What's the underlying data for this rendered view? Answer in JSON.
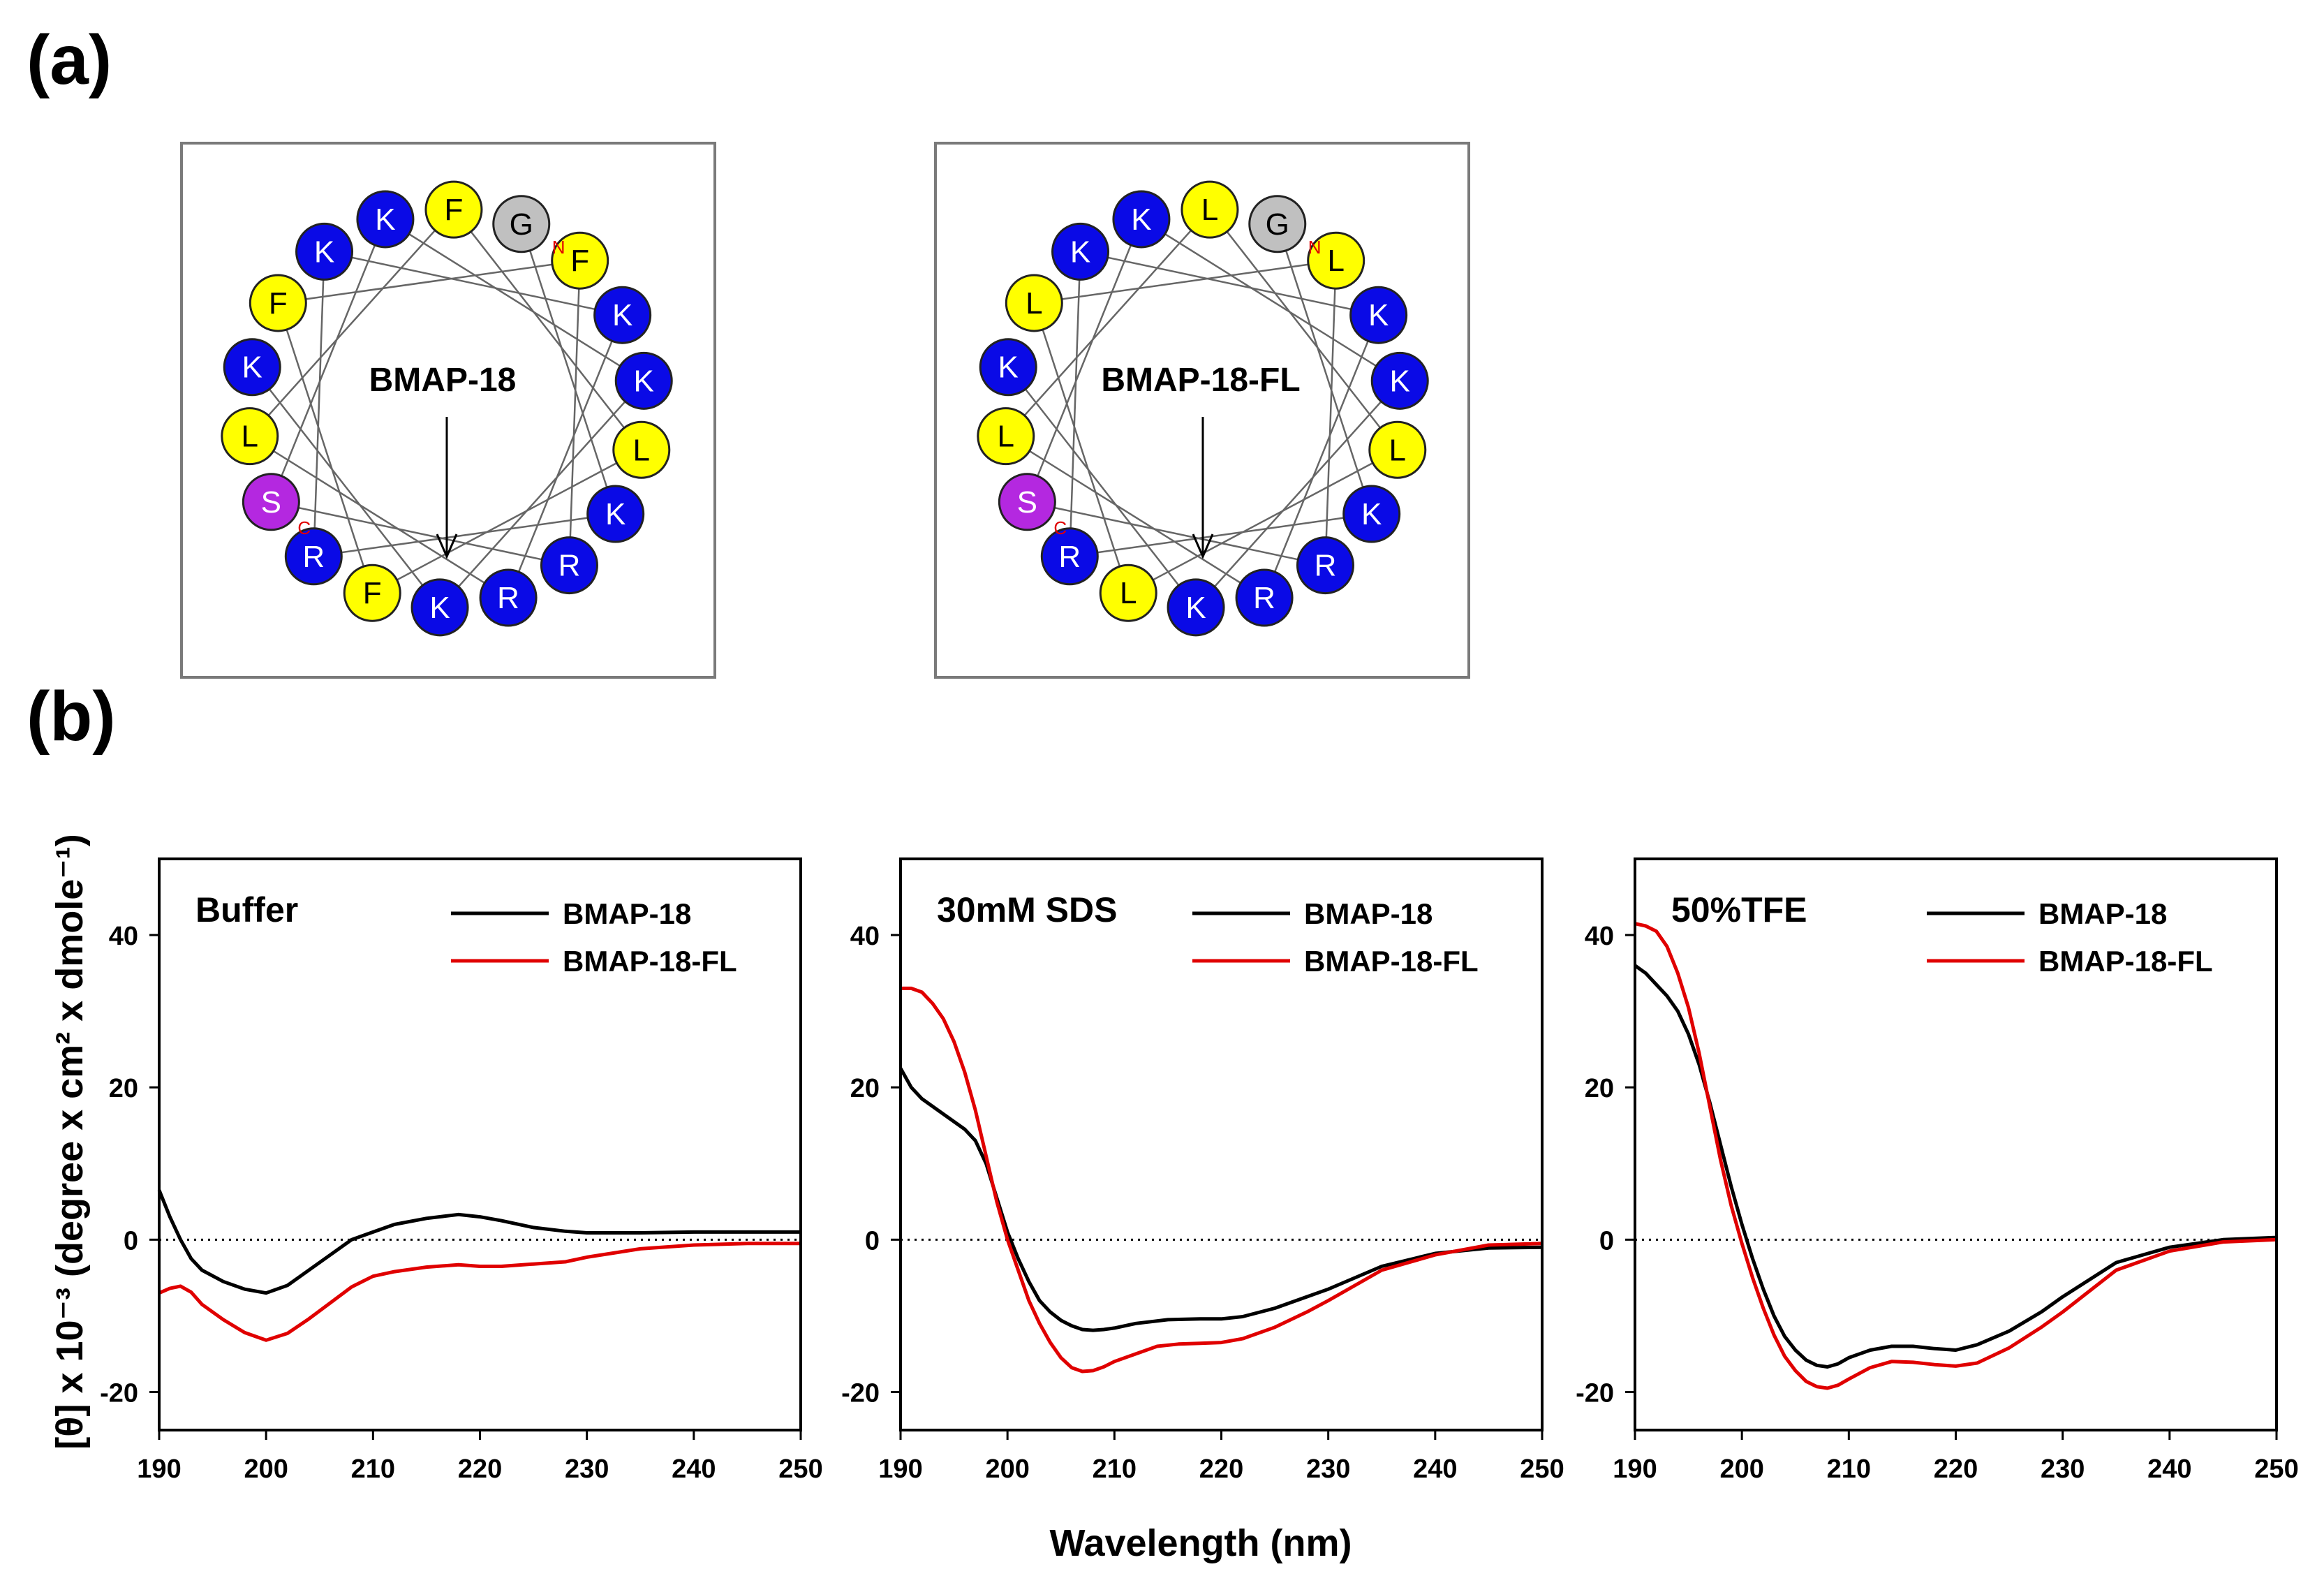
{
  "panels": {
    "a": "(a)",
    "b": "(b)"
  },
  "helical_wheels": [
    {
      "title": "BMAP-18",
      "n_marker": "N",
      "c_marker": "C",
      "residues": [
        {
          "letter": "G",
          "color": "#c0c0c0"
        },
        {
          "letter": "K",
          "color": "#0a0ae6"
        },
        {
          "letter": "R",
          "color": "#0a0ae6"
        },
        {
          "letter": "K",
          "color": "#0a0ae6"
        },
        {
          "letter": "K",
          "color": "#0a0ae6"
        },
        {
          "letter": "R",
          "color": "#0a0ae6"
        },
        {
          "letter": "L",
          "color": "#ffff00"
        },
        {
          "letter": "F",
          "color": "#ffff00"
        },
        {
          "letter": "L",
          "color": "#ffff00"
        },
        {
          "letter": "F",
          "color": "#ffff00"
        },
        {
          "letter": "F",
          "color": "#ffff00"
        },
        {
          "letter": "F",
          "color": "#ffff00"
        },
        {
          "letter": "R",
          "color": "#0a0ae6"
        },
        {
          "letter": "S",
          "color": "#b428e0"
        },
        {
          "letter": "K",
          "color": "#0a0ae6"
        },
        {
          "letter": "K",
          "color": "#0a0ae6"
        },
        {
          "letter": "K",
          "color": "#0a0ae6"
        },
        {
          "letter": "K",
          "color": "#0a0ae6"
        }
      ]
    },
    {
      "title": "BMAP-18-FL",
      "n_marker": "N",
      "c_marker": "C",
      "residues": [
        {
          "letter": "G",
          "color": "#c0c0c0"
        },
        {
          "letter": "K",
          "color": "#0a0ae6"
        },
        {
          "letter": "R",
          "color": "#0a0ae6"
        },
        {
          "letter": "K",
          "color": "#0a0ae6"
        },
        {
          "letter": "K",
          "color": "#0a0ae6"
        },
        {
          "letter": "R",
          "color": "#0a0ae6"
        },
        {
          "letter": "L",
          "color": "#ffff00"
        },
        {
          "letter": "L",
          "color": "#ffff00"
        },
        {
          "letter": "L",
          "color": "#ffff00"
        },
        {
          "letter": "L",
          "color": "#ffff00"
        },
        {
          "letter": "L",
          "color": "#ffff00"
        },
        {
          "letter": "L",
          "color": "#ffff00"
        },
        {
          "letter": "R",
          "color": "#0a0ae6"
        },
        {
          "letter": "S",
          "color": "#b428e0"
        },
        {
          "letter": "K",
          "color": "#0a0ae6"
        },
        {
          "letter": "K",
          "color": "#0a0ae6"
        },
        {
          "letter": "K",
          "color": "#0a0ae6"
        },
        {
          "letter": "K",
          "color": "#0a0ae6"
        }
      ]
    }
  ],
  "y_axis_label": "[θ] x 10⁻³ (degree x cm² x dmole⁻¹)",
  "x_axis_label": "Wavelength (nm)",
  "chart_data": [
    {
      "type": "line",
      "title": "Buffer",
      "xlabel": "Wavelength (nm)",
      "ylabel": "[θ] x 10⁻³ (degree x cm² x dmole⁻¹)",
      "xlim": [
        190,
        250
      ],
      "ylim": [
        -25,
        50
      ],
      "xticks": [
        190,
        200,
        210,
        220,
        230,
        240,
        250
      ],
      "yticks": [
        -20,
        0,
        20,
        40
      ],
      "zero_line": "dotted",
      "legend_position": "top-right",
      "series": [
        {
          "name": "BMAP-18",
          "color": "#000000",
          "x": [
            190,
            191,
            192,
            193,
            194,
            196,
            198,
            200,
            202,
            204,
            206,
            208,
            210,
            212,
            215,
            218,
            220,
            222,
            225,
            228,
            230,
            235,
            240,
            245,
            250
          ],
          "y": [
            6.5,
            3,
            0,
            -2.5,
            -4,
            -5.5,
            -6.5,
            -7,
            -6,
            -4,
            -2,
            0,
            1,
            2,
            2.8,
            3.3,
            3,
            2.5,
            1.6,
            1.1,
            0.9,
            0.9,
            1,
            1,
            1
          ]
        },
        {
          "name": "BMAP-18-FL",
          "color": "#e00000",
          "x": [
            190,
            191,
            192,
            193,
            194,
            196,
            198,
            200,
            202,
            204,
            206,
            208,
            210,
            212,
            215,
            218,
            220,
            222,
            225,
            228,
            230,
            235,
            240,
            245,
            250
          ],
          "y": [
            -7,
            -6.4,
            -6.1,
            -6.9,
            -8.5,
            -10.5,
            -12.2,
            -13.2,
            -12.3,
            -10.4,
            -8.3,
            -6.2,
            -4.8,
            -4.2,
            -3.6,
            -3.3,
            -3.5,
            -3.5,
            -3.2,
            -2.9,
            -2.3,
            -1.2,
            -0.7,
            -0.5,
            -0.5
          ]
        }
      ]
    },
    {
      "type": "line",
      "title": "30mM SDS",
      "xlabel": "Wavelength (nm)",
      "ylabel": "[θ] x 10⁻³ (degree x cm² x dmole⁻¹)",
      "xlim": [
        190,
        250
      ],
      "ylim": [
        -25,
        50
      ],
      "xticks": [
        190,
        200,
        210,
        220,
        230,
        240,
        250
      ],
      "yticks": [
        -20,
        0,
        20,
        40
      ],
      "zero_line": "dotted",
      "legend_position": "top-right",
      "series": [
        {
          "name": "BMAP-18",
          "color": "#000000",
          "x": [
            190,
            191,
            192,
            194,
            196,
            197,
            198,
            199,
            200,
            201,
            202,
            203,
            204,
            205,
            206,
            207,
            208,
            209,
            210,
            212,
            215,
            218,
            220,
            222,
            225,
            228,
            230,
            235,
            240,
            245,
            250
          ],
          "y": [
            22.5,
            20,
            18.5,
            16.5,
            14.5,
            13,
            10,
            5.5,
            1,
            -2.5,
            -5.5,
            -8,
            -9.5,
            -10.6,
            -11.3,
            -11.8,
            -11.9,
            -11.8,
            -11.6,
            -11,
            -10.5,
            -10.4,
            -10.4,
            -10.1,
            -9,
            -7.5,
            -6.5,
            -3.5,
            -1.8,
            -1.1,
            -1
          ]
        },
        {
          "name": "BMAP-18-FL",
          "color": "#e00000",
          "x": [
            190,
            191,
            192,
            193,
            194,
            195,
            196,
            197,
            198,
            199,
            200,
            201,
            202,
            203,
            204,
            205,
            206,
            207,
            208,
            209,
            210,
            212,
            214,
            216,
            218,
            220,
            222,
            225,
            228,
            230,
            235,
            240,
            245,
            250
          ],
          "y": [
            33,
            33,
            32.5,
            31,
            29,
            26,
            22,
            17,
            11,
            5,
            0,
            -4,
            -8,
            -11,
            -13.5,
            -15.5,
            -16.8,
            -17.3,
            -17.2,
            -16.7,
            -16,
            -15,
            -14,
            -13.7,
            -13.6,
            -13.5,
            -13,
            -11.5,
            -9.5,
            -8,
            -4,
            -2,
            -0.7,
            -0.5
          ]
        }
      ]
    },
    {
      "type": "line",
      "title": "50%TFE",
      "xlabel": "Wavelength (nm)",
      "ylabel": "[θ] x 10⁻³ (degree x cm² x dmole⁻¹)",
      "xlim": [
        190,
        250
      ],
      "ylim": [
        -25,
        50
      ],
      "xticks": [
        190,
        200,
        210,
        220,
        230,
        240,
        250
      ],
      "yticks": [
        -20,
        0,
        20,
        40
      ],
      "zero_line": "dotted",
      "legend_position": "top-right",
      "series": [
        {
          "name": "BMAP-18",
          "color": "#000000",
          "x": [
            190,
            191,
            192,
            193,
            194,
            195,
            196,
            197,
            198,
            199,
            200,
            201,
            202,
            203,
            204,
            205,
            206,
            207,
            208,
            209,
            210,
            212,
            214,
            216,
            218,
            220,
            222,
            225,
            228,
            230,
            235,
            240,
            245,
            250
          ],
          "y": [
            36,
            35,
            33.5,
            32,
            30,
            27,
            23,
            18,
            12.5,
            7,
            2,
            -2.5,
            -6.5,
            -10,
            -12.7,
            -14.5,
            -15.8,
            -16.5,
            -16.7,
            -16.3,
            -15.5,
            -14.5,
            -14,
            -14,
            -14.3,
            -14.5,
            -13.8,
            -12,
            -9.5,
            -7.5,
            -3,
            -1,
            0,
            0.3
          ]
        },
        {
          "name": "BMAP-18-FL",
          "color": "#e00000",
          "x": [
            190,
            191,
            192,
            193,
            194,
            195,
            196,
            197,
            198,
            199,
            200,
            201,
            202,
            203,
            204,
            205,
            206,
            207,
            208,
            209,
            210,
            212,
            214,
            216,
            218,
            220,
            222,
            225,
            228,
            230,
            235,
            240,
            245,
            250
          ],
          "y": [
            41.5,
            41.2,
            40.5,
            38.5,
            35,
            30.5,
            24.5,
            17.5,
            10.5,
            4.5,
            -0.5,
            -5,
            -9,
            -12.5,
            -15.3,
            -17.2,
            -18.6,
            -19.3,
            -19.5,
            -19.1,
            -18.3,
            -16.8,
            -16,
            -16.1,
            -16.4,
            -16.6,
            -16.2,
            -14.2,
            -11.5,
            -9.5,
            -4,
            -1.5,
            -0.3,
            0
          ]
        }
      ]
    }
  ]
}
